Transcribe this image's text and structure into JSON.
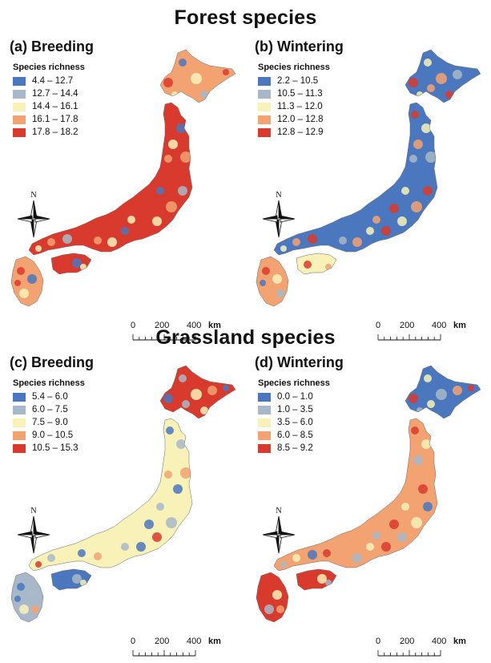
{
  "sections": {
    "forest": "Forest species",
    "grassland": "Grassland species"
  },
  "panels": [
    {
      "title": "(a) Breeding",
      "legend_title": "Species richness",
      "classes": [
        "4.4 – 12.7",
        "12.7 – 14.4",
        "14.4 – 16.1",
        "16.1 – 17.8",
        "17.8 – 18.2"
      ],
      "dominant_colors": [
        "#e6483a",
        "#f29a74",
        "#e04436"
      ]
    },
    {
      "title": "(b) Wintering",
      "legend_title": "Species richness",
      "classes": [
        "2.2 – 10.5",
        "10.5 – 11.3",
        "11.3 – 12.0",
        "12.0 – 12.8",
        "12.8 – 12.9"
      ],
      "dominant_colors": [
        "#4a78c0",
        "#f0a070",
        "#f7eeb0"
      ]
    },
    {
      "title": "(c) Breeding",
      "legend_title": "Species richness",
      "classes": [
        "5.4 – 6.0",
        "6.0 – 7.5",
        "7.5 – 9.0",
        "9.0 – 10.5",
        "10.5 – 15.3"
      ],
      "dominant_colors": [
        "#d7302a",
        "#f7eeb0",
        "#5b86c6"
      ]
    },
    {
      "title": "(d) Wintering",
      "legend_title": "Species richness",
      "classes": [
        "0.0 – 1.0",
        "1.0 – 3.5",
        "3.5 – 6.0",
        "6.0 – 8.5",
        "8.5 – 9.2"
      ],
      "dominant_colors": [
        "#7f9fd0",
        "#e05838",
        "#d93a2e"
      ]
    }
  ],
  "palette": [
    "#4a77bd",
    "#a8b8c8",
    "#f8f2b8",
    "#f3a272",
    "#d93a2e"
  ],
  "north_label": "N",
  "scale": {
    "ticks": [
      "0",
      "200",
      "400"
    ],
    "unit": "km"
  }
}
